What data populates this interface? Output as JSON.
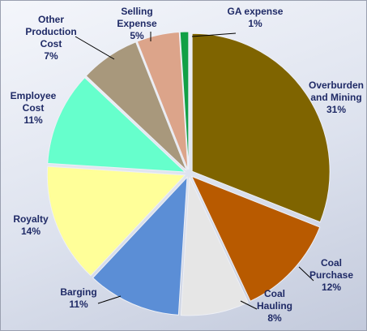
{
  "chart_data": {
    "type": "pie",
    "categories": [
      "Overburden and Mining",
      "Coal Purchase",
      "Coal Hauling",
      "Barging",
      "Royalty",
      "Employee Cost",
      "Other Production Cost",
      "Selling Expense",
      "GA expense"
    ],
    "values": [
      31,
      12,
      8,
      11,
      14,
      11,
      7,
      5,
      1
    ],
    "value_labels": [
      "31%",
      "12%",
      "8%",
      "11%",
      "14%",
      "11%",
      "7%",
      "5%",
      "1%"
    ],
    "colors": [
      "#7f6400",
      "#b85a00",
      "#e6e6e6",
      "#5b8ed6",
      "#ffff99",
      "#66ffcc",
      "#a8987c",
      "#dca48a",
      "#12a046"
    ]
  }
}
